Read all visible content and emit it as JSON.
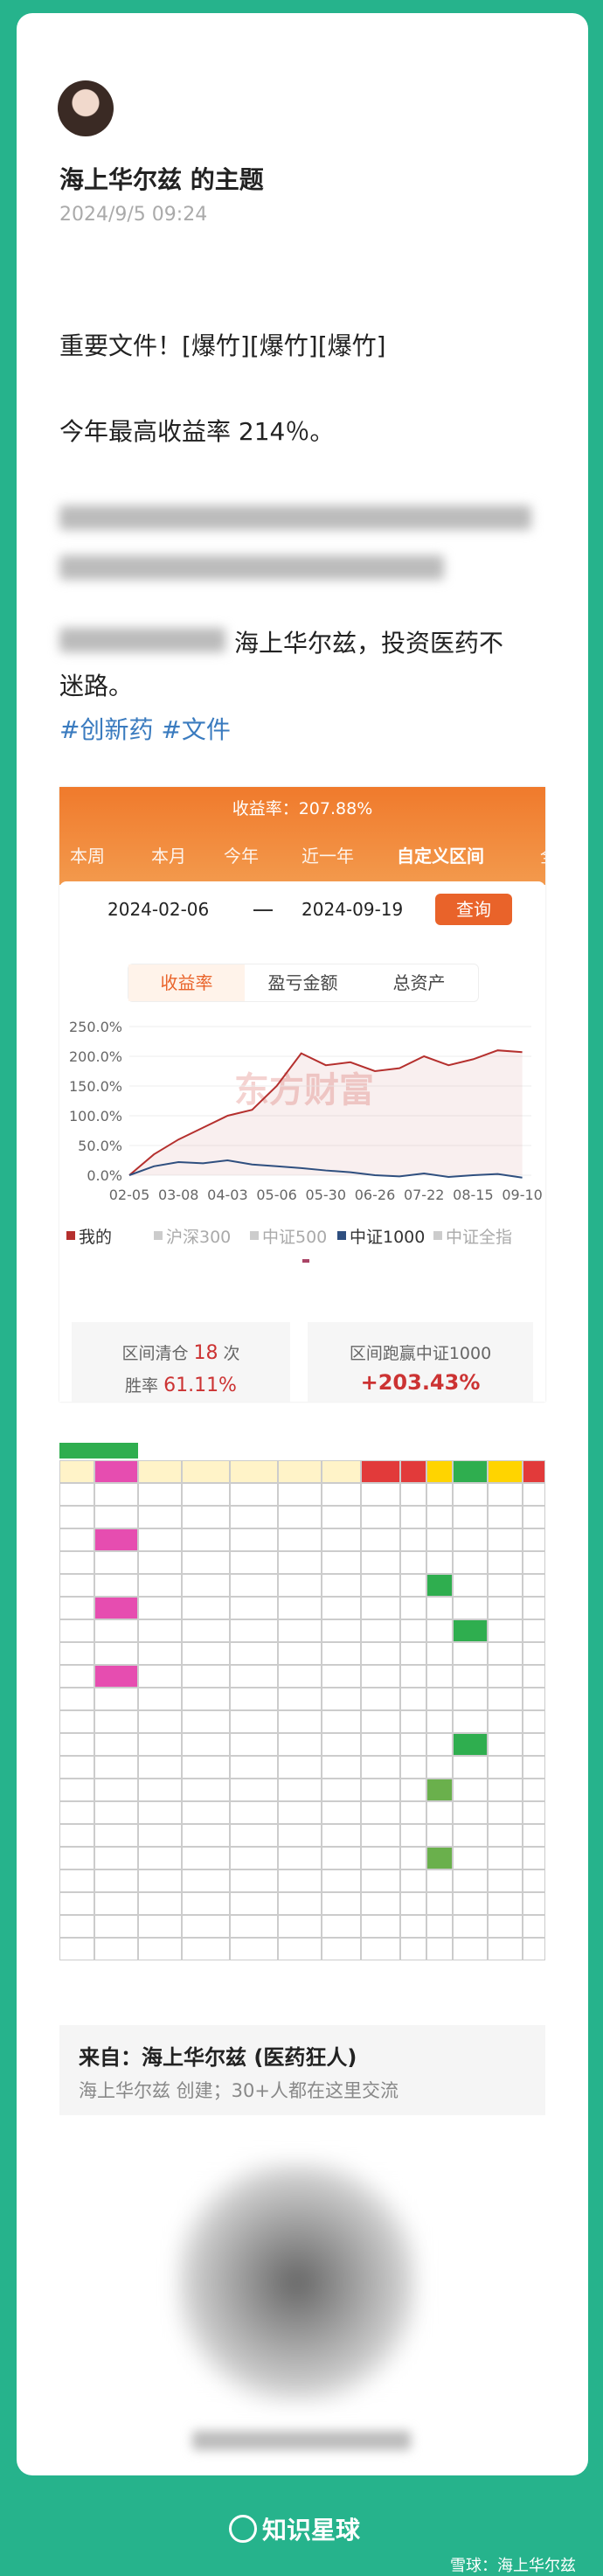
{
  "header": {
    "title": "海上华尔兹 的主题",
    "date": "2024/9/5 09:24"
  },
  "post": {
    "lines": [
      "重要文件！[爆竹][爆竹][爆竹]",
      "今年最高收益率 214％。",
      "海上华尔兹，投资医药不",
      "迷路。"
    ],
    "tags": "#创新药 #文件"
  },
  "screenshot": {
    "header": "收益率：207.88%",
    "tabs": [
      "本周",
      "本月",
      "今年",
      "近一年",
      "自定义区间",
      "全"
    ],
    "active_tab": 4,
    "start_date": "2024-02-06",
    "end_date": "2024-09-19",
    "button": "查询",
    "subtabs": [
      "收益率",
      "盈亏金额",
      "总资产"
    ],
    "active_subtab": 0,
    "chart": {
      "type": "line",
      "categories": [
        "02-05",
        null,
        "03-08",
        null,
        "04-03",
        null,
        "05-06",
        null,
        "05-30",
        null,
        "06-26",
        null,
        "07-22",
        null,
        "08-15",
        null,
        "09-10"
      ],
      "ylim": [
        -5,
        250
      ],
      "yticks": [
        {
          "value": 250,
          "label": "250.0%"
        },
        {
          "value": 200,
          "label": "200.0%"
        },
        {
          "value": 150,
          "label": "150.0%"
        },
        {
          "value": 100,
          "label": "100.0%"
        },
        {
          "value": 50,
          "label": "50.0%"
        },
        {
          "value": 0,
          "label": "0.0%"
        }
      ],
      "grid": true,
      "series": [
        {
          "name": "我的",
          "color": "#b5302e",
          "active": true,
          "values": [
            0,
            35,
            60,
            80,
            100,
            110,
            150,
            205,
            185,
            190,
            175,
            180,
            200,
            185,
            195,
            210,
            207
          ]
        },
        {
          "name": "沪深300",
          "color": "#aaaaaa",
          "active": false
        },
        {
          "name": "中证500",
          "color": "#aaaaaa",
          "active": false
        },
        {
          "name": "中证1000",
          "color": "#2f4f7f",
          "active": true,
          "values": [
            0,
            15,
            22,
            20,
            25,
            18,
            15,
            12,
            8,
            5,
            0,
            -2,
            3,
            -3,
            0,
            2,
            -4
          ]
        },
        {
          "name": "中证全指",
          "color": "#aaaaaa",
          "active": false
        }
      ]
    },
    "stats": [
      {
        "label_pre": "区间清仓",
        "value": "18",
        "label_post": "次"
      },
      {
        "label": "胜率",
        "value": "61.11%"
      },
      {
        "label": "区间跑赢中证1000",
        "value": "+203.43%"
      }
    ]
  },
  "source": {
    "title": "来自：海上华尔兹 (医药狂人)",
    "subtitle": "海上华尔兹 创建；30+人都在这里交流"
  },
  "footer": {
    "brand": "知识星球",
    "watermark": "雪球：海上华尔兹"
  }
}
